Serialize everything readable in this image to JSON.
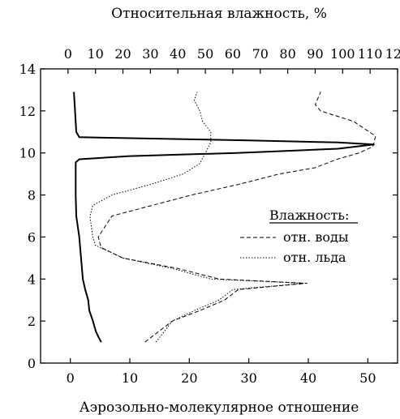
{
  "chart_data": {
    "type": "line",
    "title": "",
    "top_axis": {
      "label": "Относительная влажность, %",
      "range": [
        -10,
        120
      ],
      "ticks": [
        0,
        10,
        20,
        30,
        40,
        50,
        60,
        70,
        80,
        90,
        100,
        110,
        120
      ],
      "tick_labels": [
        "0",
        "10",
        "20",
        "30",
        "40",
        "50",
        "60",
        "70",
        "80",
        "90",
        "100",
        "110",
        "120"
      ]
    },
    "bottom_axis": {
      "label": "Аэрозольно-молекулярное отношение",
      "range": [
        -5,
        55
      ],
      "ticks": [
        0,
        10,
        20,
        30,
        40,
        50
      ],
      "tick_labels": [
        "0",
        "10",
        "20",
        "30",
        "40",
        "50"
      ]
    },
    "y_axis": {
      "label": "",
      "range": [
        0,
        14
      ],
      "ticks": [
        0,
        2,
        4,
        6,
        8,
        10,
        12,
        14
      ],
      "tick_labels": [
        "0",
        "2",
        "4",
        "6",
        "8",
        "10",
        "12",
        "14"
      ]
    },
    "legend": {
      "title": "Влажность:",
      "placement": "right",
      "entries": [
        {
          "label": "отн. воды",
          "style": "dashed"
        },
        {
          "label": "отн. льда",
          "style": "dotted"
        }
      ]
    },
    "series": [
      {
        "axis": "bottom",
        "style": "solid",
        "y": [
          1.0,
          1.2,
          1.5,
          2.0,
          2.5,
          3.0,
          3.5,
          4.0,
          5.0,
          6.0,
          7.0,
          8.0,
          9.0,
          9.55,
          9.7,
          9.85,
          10.0,
          10.2,
          10.4,
          10.5,
          10.6,
          10.75,
          11.0,
          12.0,
          12.9
        ],
        "x": [
          5.2,
          4.8,
          4.3,
          3.8,
          3.2,
          3.0,
          2.5,
          2.1,
          1.8,
          1.5,
          1.0,
          0.9,
          0.9,
          0.9,
          1.5,
          10.0,
          28.0,
          45.0,
          51.0,
          45.0,
          30.0,
          1.5,
          1.0,
          0.8,
          0.6
        ]
      },
      {
        "axis": "top",
        "style": "dashed",
        "y": [
          1.0,
          1.5,
          2.0,
          2.5,
          3.0,
          3.5,
          3.8,
          4.0,
          4.5,
          5.0,
          5.5,
          6.0,
          7.0,
          8.0,
          8.5,
          9.0,
          9.3,
          9.7,
          10.0,
          10.3,
          10.8,
          11.5,
          12.0,
          12.3,
          12.9
        ],
        "x": [
          28,
          33,
          38,
          48,
          57,
          62,
          87,
          55,
          40,
          20,
          12,
          11,
          16,
          45,
          62,
          77,
          90,
          98,
          106,
          111,
          112,
          104,
          92,
          90,
          92
        ]
      },
      {
        "axis": "top",
        "style": "dotted",
        "y": [
          1.0,
          1.5,
          2.0,
          2.5,
          3.0,
          3.5,
          3.8,
          4.0,
          4.5,
          5.0,
          5.6,
          6.0,
          7.0,
          7.5,
          8.0,
          8.5,
          9.0,
          9.5,
          10.0,
          10.5,
          11.0,
          11.5,
          12.0,
          12.5,
          12.9
        ],
        "x": [
          32,
          35,
          38,
          46,
          55,
          60,
          86,
          52,
          38,
          20,
          10,
          9,
          8,
          9,
          16,
          30,
          42,
          48,
          50,
          52,
          52,
          49,
          48,
          46,
          47
        ]
      }
    ]
  }
}
